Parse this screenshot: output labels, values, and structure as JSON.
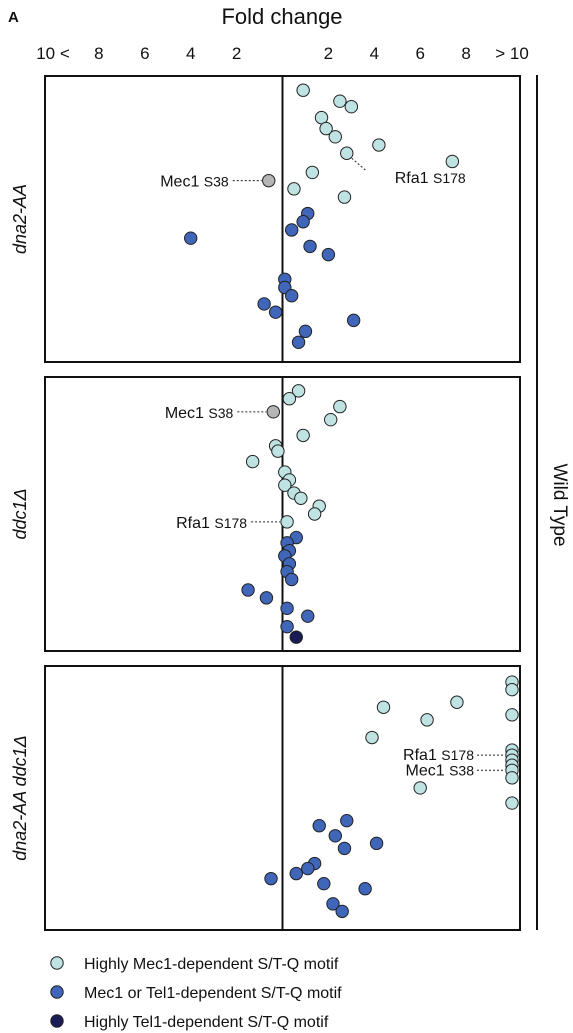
{
  "chart_data": {
    "type": "scatter",
    "panel_letter": "A",
    "title": "Fold change",
    "right_label": "Wild Type",
    "x_tick_labels": [
      "10 <",
      "8",
      "6",
      "4",
      "2",
      "",
      "2",
      "4",
      "6",
      "8",
      "> 10"
    ],
    "x_tick_values": [
      -10,
      -8,
      -6,
      -4,
      -2,
      0,
      2,
      4,
      6,
      8,
      10
    ],
    "xlim": [
      -10,
      10
    ],
    "colors": {
      "mec1": "#bfe3e3",
      "mec1_tel1": "#3f66b8",
      "tel1": "#1a1d55",
      "other": "#b5b5b5"
    },
    "legend": [
      {
        "key": "mec1",
        "label": "Highly Mec1-dependent S/T-Q motif"
      },
      {
        "key": "mec1_tel1",
        "label": "Mec1 or Tel1-dependent S/T-Q motif"
      },
      {
        "key": "tel1",
        "label": "Highly Tel1-dependent S/T-Q motif"
      }
    ],
    "panels": [
      {
        "label": "dna2-AA",
        "points": [
          {
            "x": 0.9,
            "y": 0.03,
            "cat": "mec1"
          },
          {
            "x": 2.5,
            "y": 0.07,
            "cat": "mec1"
          },
          {
            "x": 3.0,
            "y": 0.09,
            "cat": "mec1"
          },
          {
            "x": 1.7,
            "y": 0.13,
            "cat": "mec1"
          },
          {
            "x": 1.9,
            "y": 0.17,
            "cat": "mec1"
          },
          {
            "x": 2.3,
            "y": 0.2,
            "cat": "mec1"
          },
          {
            "x": 4.2,
            "y": 0.23,
            "cat": "mec1"
          },
          {
            "x": 2.8,
            "y": 0.26,
            "cat": "mec1"
          },
          {
            "x": 7.4,
            "y": 0.29,
            "cat": "mec1"
          },
          {
            "x": 1.3,
            "y": 0.33,
            "cat": "mec1"
          },
          {
            "x": -0.6,
            "y": 0.36,
            "cat": "other"
          },
          {
            "x": 0.5,
            "y": 0.39,
            "cat": "mec1"
          },
          {
            "x": 2.7,
            "y": 0.42,
            "cat": "mec1"
          },
          {
            "x": 1.1,
            "y": 0.48,
            "cat": "mec1_tel1"
          },
          {
            "x": 0.9,
            "y": 0.51,
            "cat": "mec1_tel1"
          },
          {
            "x": 0.4,
            "y": 0.54,
            "cat": "mec1_tel1"
          },
          {
            "x": -4.0,
            "y": 0.57,
            "cat": "mec1_tel1"
          },
          {
            "x": 1.2,
            "y": 0.6,
            "cat": "mec1_tel1"
          },
          {
            "x": 2.0,
            "y": 0.63,
            "cat": "mec1_tel1"
          },
          {
            "x": 0.1,
            "y": 0.72,
            "cat": "mec1_tel1"
          },
          {
            "x": 0.1,
            "y": 0.75,
            "cat": "mec1_tel1"
          },
          {
            "x": 0.4,
            "y": 0.78,
            "cat": "mec1_tel1"
          },
          {
            "x": -0.8,
            "y": 0.81,
            "cat": "mec1_tel1"
          },
          {
            "x": -0.3,
            "y": 0.84,
            "cat": "mec1_tel1"
          },
          {
            "x": 3.1,
            "y": 0.87,
            "cat": "mec1_tel1"
          },
          {
            "x": 1.0,
            "y": 0.91,
            "cat": "mec1_tel1"
          },
          {
            "x": 0.7,
            "y": 0.95,
            "cat": "mec1_tel1"
          }
        ],
        "annotations": [
          {
            "name": "Mec1",
            "site": "S38",
            "side": "left",
            "point": 10
          },
          {
            "name": "Rfa1",
            "site": "S178",
            "side": "right",
            "point": 7
          }
        ]
      },
      {
        "label": "ddc1Δ",
        "points": [
          {
            "x": 0.7,
            "y": 0.03,
            "cat": "mec1"
          },
          {
            "x": 0.3,
            "y": 0.06,
            "cat": "mec1"
          },
          {
            "x": 2.5,
            "y": 0.09,
            "cat": "mec1"
          },
          {
            "x": -0.4,
            "y": 0.11,
            "cat": "other"
          },
          {
            "x": 2.1,
            "y": 0.14,
            "cat": "mec1"
          },
          {
            "x": 0.9,
            "y": 0.2,
            "cat": "mec1"
          },
          {
            "x": -0.3,
            "y": 0.24,
            "cat": "mec1"
          },
          {
            "x": -0.2,
            "y": 0.26,
            "cat": "mec1"
          },
          {
            "x": -1.3,
            "y": 0.3,
            "cat": "mec1"
          },
          {
            "x": 0.1,
            "y": 0.34,
            "cat": "mec1"
          },
          {
            "x": 0.3,
            "y": 0.37,
            "cat": "mec1"
          },
          {
            "x": 0.1,
            "y": 0.39,
            "cat": "mec1"
          },
          {
            "x": 0.5,
            "y": 0.42,
            "cat": "mec1"
          },
          {
            "x": 0.8,
            "y": 0.44,
            "cat": "mec1"
          },
          {
            "x": 1.6,
            "y": 0.47,
            "cat": "mec1"
          },
          {
            "x": 1.4,
            "y": 0.5,
            "cat": "mec1"
          },
          {
            "x": 0.2,
            "y": 0.53,
            "cat": "mec1"
          },
          {
            "x": 0.6,
            "y": 0.59,
            "cat": "mec1_tel1"
          },
          {
            "x": 0.2,
            "y": 0.61,
            "cat": "mec1_tel1"
          },
          {
            "x": 0.3,
            "y": 0.64,
            "cat": "mec1_tel1"
          },
          {
            "x": 0.1,
            "y": 0.66,
            "cat": "mec1_tel1"
          },
          {
            "x": 0.3,
            "y": 0.69,
            "cat": "mec1_tel1"
          },
          {
            "x": 0.2,
            "y": 0.72,
            "cat": "mec1_tel1"
          },
          {
            "x": 0.4,
            "y": 0.75,
            "cat": "mec1_tel1"
          },
          {
            "x": -1.5,
            "y": 0.79,
            "cat": "mec1_tel1"
          },
          {
            "x": -0.7,
            "y": 0.82,
            "cat": "mec1_tel1"
          },
          {
            "x": 0.2,
            "y": 0.86,
            "cat": "mec1_tel1"
          },
          {
            "x": 1.1,
            "y": 0.89,
            "cat": "mec1_tel1"
          },
          {
            "x": 0.2,
            "y": 0.93,
            "cat": "mec1_tel1"
          },
          {
            "x": 0.6,
            "y": 0.97,
            "cat": "tel1"
          }
        ],
        "annotations": [
          {
            "name": "Mec1",
            "site": "S38",
            "side": "left",
            "point": 3
          },
          {
            "name": "Rfa1",
            "site": "S178",
            "side": "left",
            "point": 16
          }
        ]
      },
      {
        "label": "dna2-AA ddc1Δ",
        "points": [
          {
            "x": 10.0,
            "y": 0.04,
            "cat": "mec1"
          },
          {
            "x": 10.0,
            "y": 0.07,
            "cat": "mec1"
          },
          {
            "x": 7.6,
            "y": 0.12,
            "cat": "mec1"
          },
          {
            "x": 4.4,
            "y": 0.14,
            "cat": "mec1"
          },
          {
            "x": 10.0,
            "y": 0.17,
            "cat": "mec1"
          },
          {
            "x": 6.3,
            "y": 0.19,
            "cat": "mec1"
          },
          {
            "x": 3.9,
            "y": 0.26,
            "cat": "mec1"
          },
          {
            "x": 10.0,
            "y": 0.31,
            "cat": "mec1"
          },
          {
            "x": 10.0,
            "y": 0.33,
            "cat": "mec1"
          },
          {
            "x": 10.0,
            "y": 0.35,
            "cat": "mec1"
          },
          {
            "x": 10.0,
            "y": 0.37,
            "cat": "mec1"
          },
          {
            "x": 10.0,
            "y": 0.39,
            "cat": "mec1"
          },
          {
            "x": 10.0,
            "y": 0.42,
            "cat": "mec1"
          },
          {
            "x": 6.0,
            "y": 0.46,
            "cat": "mec1"
          },
          {
            "x": 10.0,
            "y": 0.52,
            "cat": "mec1"
          },
          {
            "x": 2.8,
            "y": 0.59,
            "cat": "mec1_tel1"
          },
          {
            "x": 1.6,
            "y": 0.61,
            "cat": "mec1_tel1"
          },
          {
            "x": 2.3,
            "y": 0.65,
            "cat": "mec1_tel1"
          },
          {
            "x": 4.1,
            "y": 0.68,
            "cat": "mec1_tel1"
          },
          {
            "x": 2.7,
            "y": 0.7,
            "cat": "mec1_tel1"
          },
          {
            "x": 1.4,
            "y": 0.76,
            "cat": "mec1_tel1"
          },
          {
            "x": 1.1,
            "y": 0.78,
            "cat": "mec1_tel1"
          },
          {
            "x": 0.6,
            "y": 0.8,
            "cat": "mec1_tel1"
          },
          {
            "x": -0.5,
            "y": 0.82,
            "cat": "mec1_tel1"
          },
          {
            "x": 1.8,
            "y": 0.84,
            "cat": "mec1_tel1"
          },
          {
            "x": 3.6,
            "y": 0.86,
            "cat": "mec1_tel1"
          },
          {
            "x": 2.2,
            "y": 0.92,
            "cat": "mec1_tel1"
          },
          {
            "x": 2.6,
            "y": 0.95,
            "cat": "mec1_tel1"
          }
        ],
        "annotations": [
          {
            "name": "Rfa1",
            "site": "S178",
            "side": "leftcol",
            "point": 8
          },
          {
            "name": "Mec1",
            "site": "S38",
            "side": "leftcol",
            "point": 11
          }
        ]
      }
    ]
  }
}
